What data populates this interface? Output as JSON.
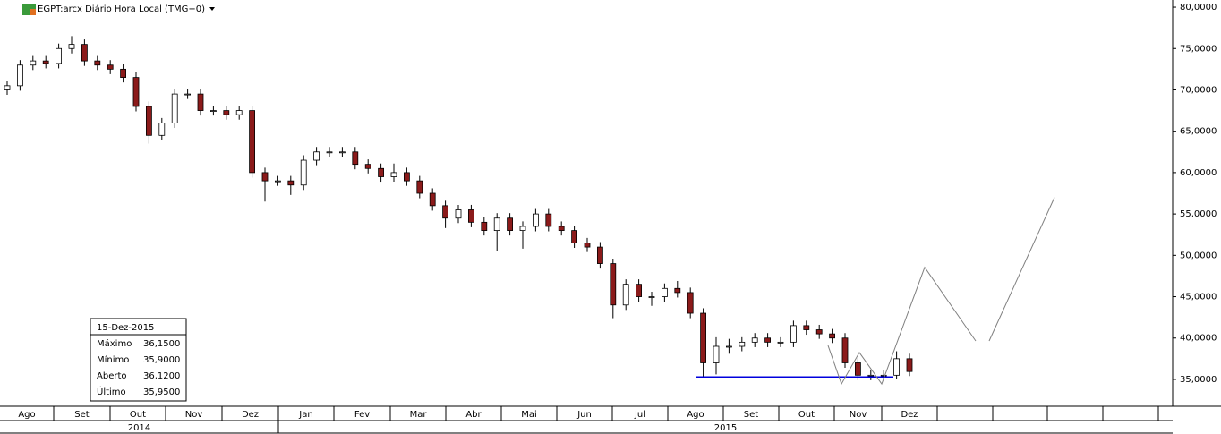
{
  "chart_data": {
    "type": "candlestick",
    "title": "EGPT:arcx Diário Hora Local (TMG+0)",
    "ylim": [
      31.75,
      80.87
    ],
    "yticks": [
      {
        "value": 35,
        "label": "35,0000"
      },
      {
        "value": 40,
        "label": "40,0000"
      },
      {
        "value": 45,
        "label": "45,0000"
      },
      {
        "value": 50,
        "label": "50,0000"
      },
      {
        "value": 55,
        "label": "55,0000"
      },
      {
        "value": 60,
        "label": "60,0000"
      },
      {
        "value": 65,
        "label": "65,0000"
      },
      {
        "value": 70,
        "label": "70,0000"
      },
      {
        "value": 75,
        "label": "75,0000"
      },
      {
        "value": 80,
        "label": "80,0000"
      }
    ],
    "months": [
      "Ago",
      "Set",
      "Out",
      "Nov",
      "Dez",
      "Jan",
      "Fev",
      "Mar",
      "Abr",
      "Mai",
      "Jun",
      "Jul",
      "Ago",
      "Set",
      "Out",
      "Nov",
      "Dez",
      null,
      null,
      null,
      null,
      null
    ],
    "years": [
      "2014",
      "2015"
    ],
    "up_color": "#ffffff",
    "down_color": "#8b1a1a",
    "open": [
      70,
      70.5,
      73,
      73.5,
      73.2,
      75,
      75.5,
      73.5,
      73,
      72.5,
      71.5,
      68,
      64.5,
      66,
      69.5,
      69.5,
      67.5,
      67.5,
      67,
      67.5,
      60,
      59,
      59,
      58.5,
      61.5,
      62.5,
      62.5,
      62.5,
      61,
      60.5,
      59.5,
      60,
      59,
      57.5,
      56,
      54.5,
      55.5,
      54,
      53,
      54.5,
      53,
      53.5,
      55,
      53.5,
      53,
      51.5,
      51,
      49,
      44,
      46.5,
      45,
      45,
      46,
      45.5,
      43,
      37,
      39,
      39,
      39.5,
      40,
      39.5,
      39.5,
      41.5,
      41,
      40.5,
      40,
      37,
      35.5,
      35.5,
      35.5,
      37.5
    ],
    "high": [
      71.1,
      73.6,
      74.1,
      74.1,
      75.6,
      76.5,
      76.1,
      74.1,
      73.6,
      73.1,
      72.1,
      68.6,
      66.6,
      70.1,
      70.1,
      70.1,
      68.1,
      68.1,
      68.1,
      68.1,
      60.6,
      59.6,
      59.6,
      62.1,
      63.1,
      63.1,
      63.1,
      63.1,
      61.6,
      61.1,
      61.1,
      60.6,
      59.6,
      58.1,
      56.6,
      56.1,
      56.1,
      54.6,
      55.1,
      55.1,
      54.1,
      55.6,
      55.6,
      54.1,
      53.6,
      52.1,
      51.6,
      49.6,
      47.1,
      47.1,
      45.6,
      46.6,
      46.9,
      46.1,
      43.6,
      40.1,
      39.9,
      40.1,
      40.6,
      40.6,
      40.1,
      42.1,
      42.1,
      41.6,
      41.1,
      40.6,
      37.6,
      36.1,
      36.1,
      38.4,
      38.1
    ],
    "low": [
      69.4,
      69.9,
      72.4,
      72.6,
      72.6,
      74.4,
      72.9,
      72.4,
      71.9,
      70.9,
      67.4,
      63.5,
      63.9,
      65.4,
      68.9,
      66.9,
      66.9,
      66.4,
      66.4,
      59.4,
      56.5,
      58.4,
      57.3,
      57.9,
      60.9,
      61.9,
      61.9,
      60.4,
      59.9,
      58.9,
      58.9,
      58.4,
      56.9,
      55.4,
      53.3,
      53.9,
      53.4,
      52.4,
      50.5,
      52.4,
      50.8,
      52.9,
      52.9,
      52.4,
      50.9,
      50.4,
      48.4,
      42.4,
      43.4,
      44.4,
      43.9,
      44.4,
      44.9,
      42.4,
      35.3,
      35.6,
      38.1,
      38.4,
      38.9,
      38.9,
      38.9,
      38.9,
      40.4,
      39.9,
      39.4,
      36.4,
      34.9,
      34.9,
      35,
      35,
      35.4
    ],
    "close": [
      70.5,
      73,
      73.5,
      73.2,
      75,
      75.5,
      73.5,
      73,
      72.5,
      71.5,
      68,
      64.5,
      66,
      69.5,
      69.5,
      67.5,
      67.5,
      67,
      67.5,
      60,
      59,
      59,
      58.5,
      61.5,
      62.5,
      62.5,
      62.5,
      61,
      60.5,
      59.5,
      60,
      59,
      57.5,
      56,
      54.5,
      55.5,
      54,
      53,
      54.5,
      53,
      53.5,
      55,
      53.5,
      53,
      51.5,
      51,
      49,
      44,
      46.5,
      45,
      45,
      46,
      45.5,
      43,
      37,
      39,
      39,
      39.5,
      40,
      39.5,
      39.5,
      41.5,
      41,
      40.5,
      40,
      37,
      35.5,
      35.5,
      35.5,
      37.5,
      35.95
    ],
    "support": {
      "value": 35.3,
      "color": "#0000dd"
    },
    "projection": {
      "values": [
        39.1,
        34.45,
        38.25,
        34.45,
        48.55,
        39.65,
        null,
        39.65,
        57.0
      ],
      "color": "#808080"
    },
    "info": {
      "date": "15-Dez-2015",
      "rows": [
        {
          "name": "Máximo",
          "value": 36.15,
          "label": "36,1500"
        },
        {
          "name": "Mínimo",
          "value": 35.9,
          "label": "35,9000"
        },
        {
          "name": "Aberto",
          "value": 36.12,
          "label": "36,1200"
        },
        {
          "name": "Último",
          "value": 35.95,
          "label": "35,9500"
        }
      ]
    }
  }
}
